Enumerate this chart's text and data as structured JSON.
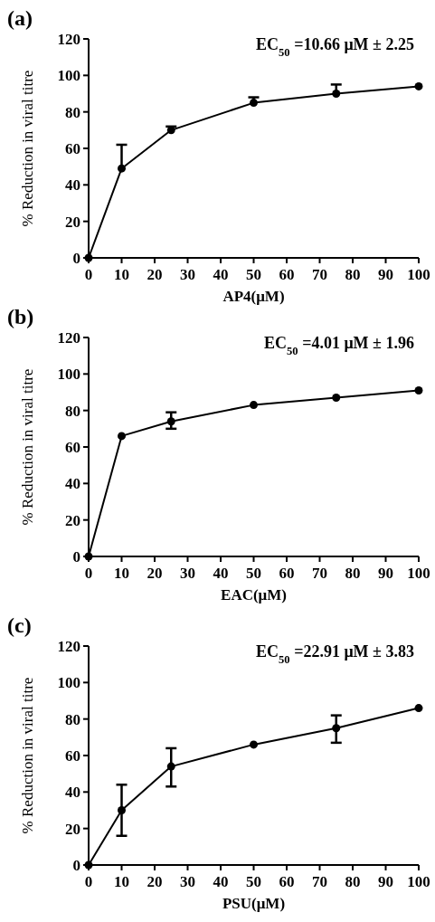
{
  "chart_data": [
    {
      "type": "line",
      "title": "(a)",
      "xlabel": "AP4(μM)",
      "ylabel": "% Reduction in viral titre",
      "annotations": [
        "EC$_{50}$ =10.66 μM ± 2.25"
      ],
      "x": [
        0,
        10,
        25,
        50,
        75,
        100
      ],
      "values": [
        0,
        49,
        70,
        85,
        90,
        94
      ],
      "errors": [
        null,
        [
          49,
          62
        ],
        [
          70,
          72
        ],
        [
          85,
          88
        ],
        [
          90,
          95
        ],
        null
      ],
      "color": "#000000",
      "marker": "circle",
      "xlim": [
        0,
        100
      ],
      "xticks": [
        0,
        10,
        20,
        30,
        40,
        50,
        60,
        70,
        80,
        90,
        100
      ],
      "ylim": [
        0,
        120
      ],
      "yticks": [
        0,
        20,
        40,
        60,
        80,
        100,
        120
      ],
      "grid": false
    },
    {
      "type": "line",
      "title": "(b)",
      "xlabel": "EAC(μM)",
      "ylabel": "% Reduction in viral titre",
      "annotations": [
        "EC$_{50}$ =4.01 μM ± 1.96"
      ],
      "x": [
        0,
        10,
        25,
        50,
        75,
        100
      ],
      "values": [
        0,
        66,
        74,
        83,
        87,
        91
      ],
      "errors": [
        null,
        null,
        [
          70,
          79
        ],
        null,
        null,
        null
      ],
      "color": "#000000",
      "marker": "circle",
      "xlim": [
        0,
        100
      ],
      "xticks": [
        0,
        10,
        20,
        30,
        40,
        50,
        60,
        70,
        80,
        90,
        100
      ],
      "ylim": [
        0,
        120
      ],
      "yticks": [
        0,
        20,
        40,
        60,
        80,
        100,
        120
      ],
      "grid": false
    },
    {
      "type": "line",
      "title": "(c)",
      "xlabel": "PSU(μM)",
      "ylabel": "% Reduction in viral titre",
      "annotations": [
        "EC$_{50}$ =22.91 μM ± 3.83"
      ],
      "x": [
        0,
        10,
        25,
        50,
        75,
        100
      ],
      "values": [
        0,
        30,
        54,
        66,
        75,
        86
      ],
      "errors": [
        null,
        [
          16,
          44
        ],
        [
          43,
          64
        ],
        null,
        [
          67,
          82
        ],
        null
      ],
      "color": "#000000",
      "marker": "circle",
      "xlim": [
        0,
        100
      ],
      "xticks": [
        0,
        10,
        20,
        30,
        40,
        50,
        60,
        70,
        80,
        90,
        100
      ],
      "ylim": [
        0,
        120
      ],
      "yticks": [
        0,
        20,
        40,
        60,
        80,
        100,
        120
      ],
      "grid": false
    }
  ]
}
